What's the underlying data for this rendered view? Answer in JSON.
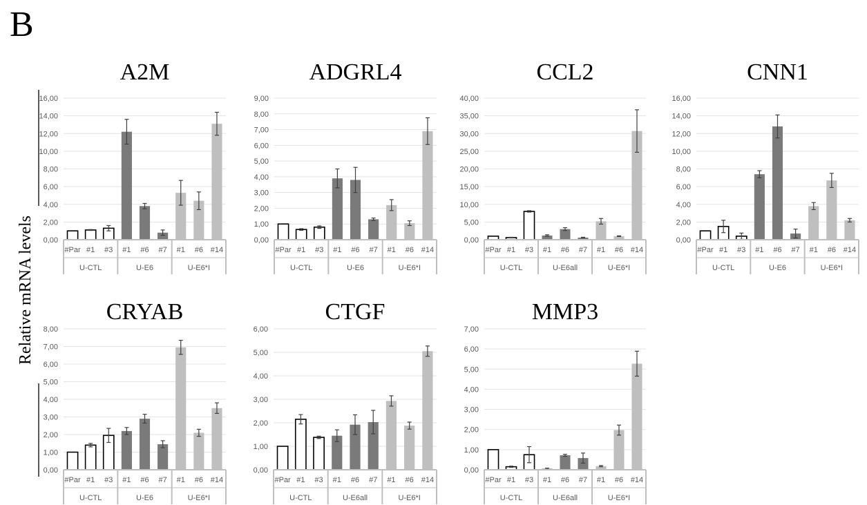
{
  "panel_label": "B",
  "ylabel": "Relative mRNA levels",
  "colors": {
    "ctl_fill": "#ffffff",
    "ctl_stroke": "#000000",
    "e6_fill": "#7a7a7a",
    "e6i_fill": "#bfbfbf",
    "axis": "#bfbfbf",
    "grid": "#e3e3e3",
    "text": "#595959",
    "errbar": "#404040"
  },
  "chart_data": [
    {
      "type": "bar",
      "title": "A2M",
      "ylim": [
        0,
        16
      ],
      "yticks": [
        "0,00",
        "2,00",
        "4,00",
        "6,00",
        "8,00",
        "10,00",
        "12,00",
        "14,00",
        "16,00"
      ],
      "categories": [
        "#Par",
        "#1",
        "#3",
        "#1",
        "#6",
        "#7",
        "#1",
        "#6",
        "#14"
      ],
      "groups": [
        {
          "label": "U-CTL",
          "count": 3,
          "color": "ctl"
        },
        {
          "label": "U-E6",
          "count": 3,
          "color": "e6"
        },
        {
          "label": "U-E6*I",
          "count": 3,
          "color": "e6i"
        }
      ],
      "values": [
        1.0,
        1.1,
        1.3,
        12.2,
        3.8,
        0.8,
        5.3,
        4.4,
        13.1
      ],
      "errors": [
        0,
        0.05,
        0.3,
        1.4,
        0.3,
        0.3,
        1.4,
        1.0,
        1.3
      ],
      "grid": true
    },
    {
      "type": "bar",
      "title": "ADGRL4",
      "ylim": [
        0,
        9
      ],
      "yticks": [
        "0,00",
        "1,00",
        "2,00",
        "3,00",
        "4,00",
        "5,00",
        "6,00",
        "7,00",
        "8,00",
        "9,00"
      ],
      "categories": [
        "#Par",
        "#1",
        "#3",
        "#1",
        "#6",
        "#7",
        "#1",
        "#6",
        "#14"
      ],
      "groups": [
        {
          "label": "U-CTL",
          "count": 3,
          "color": "ctl"
        },
        {
          "label": "U-E6",
          "count": 3,
          "color": "e6"
        },
        {
          "label": "U-E6*I",
          "count": 3,
          "color": "e6i"
        }
      ],
      "values": [
        1.0,
        0.65,
        0.8,
        3.9,
        3.8,
        1.3,
        2.2,
        1.05,
        6.9
      ],
      "errors": [
        0,
        0.05,
        0.08,
        0.6,
        0.8,
        0.08,
        0.35,
        0.15,
        0.85
      ],
      "grid": true
    },
    {
      "type": "bar",
      "title": "CCL2",
      "ylim": [
        0,
        40
      ],
      "yticks": [
        "0,00",
        "5,00",
        "10,00",
        "15,00",
        "20,00",
        "25,00",
        "30,00",
        "35,00",
        "40,00"
      ],
      "categories": [
        "#Par",
        "#1",
        "#3",
        "#1",
        "#6",
        "#7",
        "#1",
        "#6",
        "#14"
      ],
      "groups": [
        {
          "label": "U-CTL",
          "count": 3,
          "color": "ctl"
        },
        {
          "label": "U-E6all",
          "count": 3,
          "color": "e6"
        },
        {
          "label": "U-E6*I",
          "count": 3,
          "color": "e6i"
        }
      ],
      "values": [
        1.0,
        0.6,
        8.0,
        1.2,
        3.0,
        0.6,
        5.2,
        1.0,
        30.7
      ],
      "errors": [
        0,
        0.1,
        0.2,
        0.2,
        0.4,
        0.1,
        0.8,
        0.1,
        6.0
      ],
      "grid": true
    },
    {
      "type": "bar",
      "title": "CNN1",
      "ylim": [
        0,
        16
      ],
      "yticks": [
        "0,00",
        "2,00",
        "4,00",
        "6,00",
        "8,00",
        "10,00",
        "12,00",
        "14,00",
        "16,00"
      ],
      "categories": [
        "#Par",
        "#1",
        "#3",
        "#1",
        "#6",
        "#7",
        "#1",
        "#6",
        "#14"
      ],
      "groups": [
        {
          "label": "U-CTL",
          "count": 3,
          "color": "ctl"
        },
        {
          "label": "U-E6",
          "count": 3,
          "color": "e6"
        },
        {
          "label": "U-E6*I",
          "count": 3,
          "color": "e6i"
        }
      ],
      "values": [
        1.0,
        1.5,
        0.4,
        7.4,
        12.8,
        0.7,
        3.8,
        6.7,
        2.2
      ],
      "errors": [
        0,
        0.7,
        0.35,
        0.4,
        1.3,
        0.5,
        0.4,
        0.8,
        0.2
      ],
      "grid": true
    },
    {
      "type": "bar",
      "title": "CRYAB",
      "ylim": [
        0,
        8
      ],
      "yticks": [
        "0,00",
        "1,00",
        "2,00",
        "3,00",
        "4,00",
        "5,00",
        "6,00",
        "7,00",
        "8,00"
      ],
      "categories": [
        "#Par",
        "#1",
        "#3",
        "#1",
        "#6",
        "#7",
        "#1",
        "#6",
        "#14"
      ],
      "groups": [
        {
          "label": "U-CTL",
          "count": 3,
          "color": "ctl"
        },
        {
          "label": "U-E6",
          "count": 3,
          "color": "e6"
        },
        {
          "label": "U-E6*I",
          "count": 3,
          "color": "e6i"
        }
      ],
      "values": [
        1.0,
        1.4,
        1.95,
        2.2,
        2.9,
        1.45,
        6.95,
        2.1,
        3.5
      ],
      "errors": [
        0,
        0.1,
        0.4,
        0.2,
        0.25,
        0.2,
        0.4,
        0.2,
        0.3
      ],
      "grid": true
    },
    {
      "type": "bar",
      "title": "CTGF",
      "ylim": [
        0,
        6
      ],
      "yticks": [
        "0,00",
        "1,00",
        "2,00",
        "3,00",
        "4,00",
        "5,00",
        "6,00"
      ],
      "categories": [
        "#Par",
        "#1",
        "#3",
        "#1",
        "#6",
        "#7",
        "#1",
        "#6",
        "#14"
      ],
      "groups": [
        {
          "label": "U-CTL",
          "count": 3,
          "color": "ctl"
        },
        {
          "label": "U-E6all",
          "count": 3,
          "color": "e6"
        },
        {
          "label": "U-E6*I",
          "count": 3,
          "color": "e6i"
        }
      ],
      "values": [
        1.0,
        2.15,
        1.38,
        1.45,
        1.92,
        2.03,
        2.93,
        1.88,
        5.05
      ],
      "errors": [
        0,
        0.2,
        0.05,
        0.25,
        0.42,
        0.5,
        0.22,
        0.15,
        0.22
      ],
      "grid": true
    },
    {
      "type": "bar",
      "title": "MMP3",
      "ylim": [
        0,
        7
      ],
      "yticks": [
        "0,00",
        "1,00",
        "2,00",
        "3,00",
        "4,00",
        "5,00",
        "6,00",
        "7,00"
      ],
      "categories": [
        "#Par",
        "#1",
        "#3",
        "#1",
        "#6",
        "#7",
        "#1",
        "#6",
        "#14"
      ],
      "groups": [
        {
          "label": "U-CTL",
          "count": 3,
          "color": "ctl"
        },
        {
          "label": "U-E6all",
          "count": 3,
          "color": "e6"
        },
        {
          "label": "U-E6*I",
          "count": 3,
          "color": "e6i"
        }
      ],
      "values": [
        1.0,
        0.15,
        0.75,
        0.05,
        0.72,
        0.58,
        0.18,
        1.97,
        5.27
      ],
      "errors": [
        0,
        0.03,
        0.4,
        0.03,
        0.05,
        0.25,
        0.03,
        0.25,
        0.62
      ],
      "grid": true
    }
  ]
}
